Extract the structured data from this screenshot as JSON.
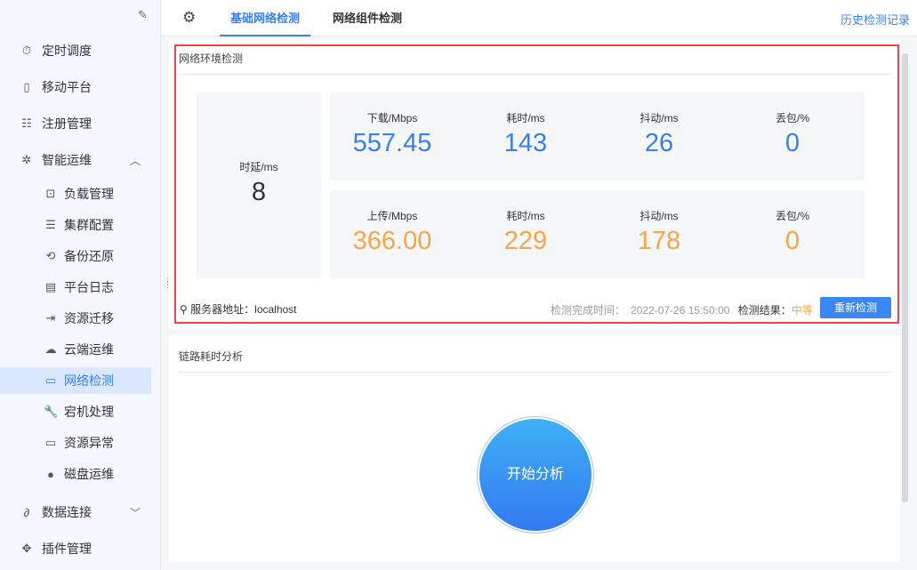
{
  "sidebar": {
    "items": [
      {
        "label": "定时调度",
        "icon": "timer-icon",
        "glyph": "⏱"
      },
      {
        "label": "移动平台",
        "icon": "mobile-icon",
        "glyph": "▯"
      },
      {
        "label": "注册管理",
        "icon": "register-icon",
        "glyph": "☷"
      },
      {
        "label": "智能运维",
        "icon": "network-nodes-icon",
        "glyph": "✲",
        "expanded": true,
        "children": [
          {
            "label": "负载管理",
            "icon": "load-icon",
            "glyph": "⊡"
          },
          {
            "label": "集群配置",
            "icon": "cluster-icon",
            "glyph": "☰"
          },
          {
            "label": "备份还原",
            "icon": "backup-icon",
            "glyph": "⟲"
          },
          {
            "label": "平台日志",
            "icon": "log-icon",
            "glyph": "▤"
          },
          {
            "label": "资源迁移",
            "icon": "migrate-icon",
            "glyph": "⇥"
          },
          {
            "label": "云端运维",
            "icon": "cloud-icon",
            "glyph": "☁"
          },
          {
            "label": "网络检测",
            "icon": "network-check-icon",
            "glyph": "▭",
            "active": true
          },
          {
            "label": "宕机处理",
            "icon": "wrench-icon",
            "glyph": "🔧"
          },
          {
            "label": "资源异常",
            "icon": "monitor-icon",
            "glyph": "▭"
          },
          {
            "label": "磁盘运维",
            "icon": "disk-icon",
            "glyph": "●"
          }
        ]
      },
      {
        "label": "数据连接",
        "icon": "link-icon",
        "glyph": "∂"
      },
      {
        "label": "插件管理",
        "icon": "plugin-icon",
        "glyph": "✥"
      }
    ]
  },
  "tabs": [
    {
      "label": "基础网络检测",
      "active": true
    },
    {
      "label": "网络组件检测"
    }
  ],
  "history_link": "历史检测记录",
  "env": {
    "title": "网络环境检测",
    "latency": {
      "label": "时延/ms",
      "value": "8"
    },
    "download": [
      {
        "label": "下载/Mbps",
        "value": "557.45"
      },
      {
        "label": "耗时/ms",
        "value": "143"
      },
      {
        "label": "抖动/ms",
        "value": "26"
      },
      {
        "label": "丢包/%",
        "value": "0"
      }
    ],
    "upload": [
      {
        "label": "上传/Mbps",
        "value": "366.00"
      },
      {
        "label": "耗时/ms",
        "value": "229"
      },
      {
        "label": "抖动/ms",
        "value": "178"
      },
      {
        "label": "丢包/%",
        "value": "0"
      }
    ],
    "server_label": "服务器地址：",
    "server": "localhost",
    "time_label": "检测完成时间：",
    "time": "2022-07-26 15:50:00",
    "result_label": "检测结果：",
    "result": "中等",
    "recheck": "重新检测"
  },
  "link": {
    "title": "链路耗时分析",
    "start": "开始分析"
  },
  "colors": {
    "accent": "#3a7ff0",
    "download": "#3a7ff0",
    "upload": "#f6a548",
    "highlight": "#f0434a"
  }
}
